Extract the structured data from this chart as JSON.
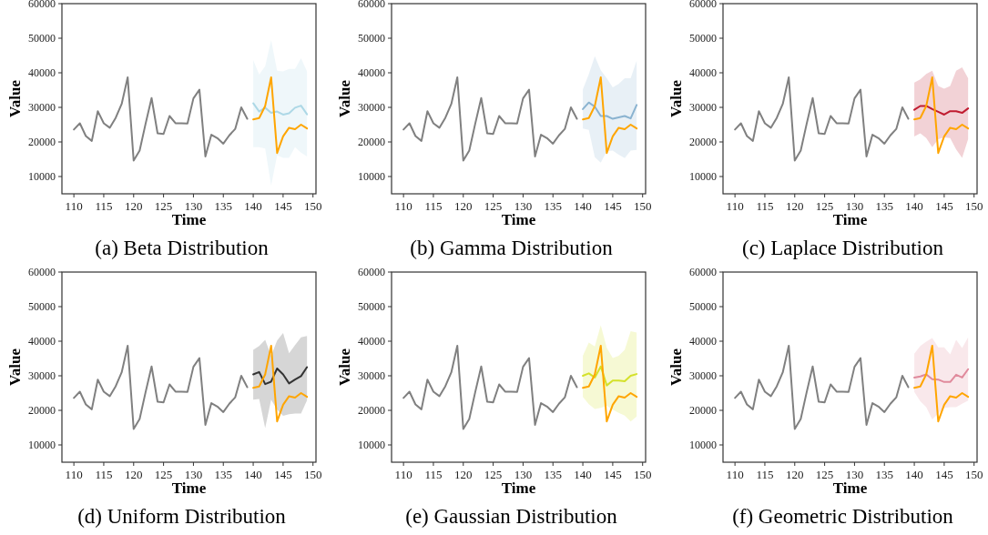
{
  "chart_data": [
    {
      "type": "line",
      "title": "(a) Beta Distribution",
      "xlabel": "Time",
      "ylabel": "Value",
      "xlim": [
        108,
        150.5
      ],
      "ylim": [
        5000,
        60000
      ],
      "xticks": [
        110,
        115,
        120,
        125,
        130,
        135,
        140,
        145,
        150
      ],
      "yticks": [
        10000,
        20000,
        30000,
        40000,
        50000,
        60000
      ],
      "grid": false,
      "line_style": "solid",
      "marker": "none",
      "series": [
        {
          "color": "#808080",
          "x": [
            110,
            111,
            112,
            113,
            114,
            115,
            116,
            117,
            118,
            119,
            120,
            121,
            122,
            123,
            124,
            125,
            126,
            127,
            128,
            129,
            130,
            131,
            132,
            133,
            134,
            135,
            136,
            137,
            138,
            139
          ],
          "values": [
            23600,
            25400,
            21700,
            20300,
            28900,
            25400,
            24100,
            27000,
            31000,
            38700,
            14600,
            17500,
            25300,
            32700,
            22500,
            22300,
            27500,
            25400,
            25400,
            25300,
            32600,
            35100,
            15800,
            22100,
            21100,
            19500,
            21900,
            23800,
            30000,
            26700
          ]
        },
        {
          "color": "#ffa500",
          "x": [
            140,
            141,
            142,
            143,
            144,
            145,
            146,
            147,
            148,
            149
          ],
          "values": [
            26500,
            26900,
            30400,
            38700,
            16800,
            21600,
            24100,
            23700,
            25000,
            23900
          ]
        },
        {
          "color": "#add8e6",
          "x": [
            140,
            141,
            142,
            143,
            144,
            145,
            146,
            147,
            148,
            149
          ],
          "values": [
            31200,
            28800,
            29900,
            28400,
            28800,
            27900,
            28300,
            29900,
            30500,
            28000
          ],
          "lower": [
            18500,
            18500,
            18100,
            7400,
            16100,
            15400,
            15400,
            18500,
            16900,
            15800
          ],
          "upper": [
            43700,
            39500,
            41900,
            49500,
            40600,
            40400,
            41100,
            41100,
            44200,
            40400
          ]
        }
      ]
    },
    {
      "type": "line",
      "title": "(b) Gamma Distribution",
      "xlabel": "Time",
      "ylabel": "Value",
      "xlim": [
        108,
        150.5
      ],
      "ylim": [
        5000,
        60000
      ],
      "xticks": [
        110,
        115,
        120,
        125,
        130,
        135,
        140,
        145,
        150
      ],
      "yticks": [
        10000,
        20000,
        30000,
        40000,
        50000,
        60000
      ],
      "grid": false,
      "line_style": "solid",
      "marker": "none",
      "series": [
        {
          "color": "#808080",
          "x": [
            110,
            111,
            112,
            113,
            114,
            115,
            116,
            117,
            118,
            119,
            120,
            121,
            122,
            123,
            124,
            125,
            126,
            127,
            128,
            129,
            130,
            131,
            132,
            133,
            134,
            135,
            136,
            137,
            138,
            139
          ],
          "values": [
            23600,
            25400,
            21700,
            20300,
            28900,
            25400,
            24100,
            27000,
            31000,
            38700,
            14600,
            17500,
            25300,
            32700,
            22500,
            22300,
            27500,
            25400,
            25400,
            25300,
            32600,
            35100,
            15800,
            22100,
            21100,
            19500,
            21900,
            23800,
            30000,
            26700
          ]
        },
        {
          "color": "#ffa500",
          "x": [
            140,
            141,
            142,
            143,
            144,
            145,
            146,
            147,
            148,
            149
          ],
          "values": [
            26500,
            26900,
            30400,
            38700,
            16800,
            21600,
            24100,
            23700,
            25000,
            23900
          ]
        },
        {
          "color": "#8ab3d0",
          "x": [
            140,
            141,
            142,
            143,
            144,
            145,
            146,
            147,
            148,
            149
          ],
          "values": [
            29500,
            31400,
            30200,
            27500,
            27500,
            26700,
            27100,
            27500,
            26800,
            30700
          ],
          "lower": [
            23900,
            23500,
            15600,
            14000,
            17400,
            17500,
            16300,
            15300,
            17500,
            17700
          ],
          "upper": [
            35200,
            39600,
            44800,
            40700,
            38400,
            35800,
            36800,
            38400,
            38400,
            43500
          ]
        }
      ]
    },
    {
      "type": "line",
      "title": "(c) Laplace Distribution",
      "xlabel": "Time",
      "ylabel": "Value",
      "xlim": [
        108,
        150.5
      ],
      "ylim": [
        5000,
        60000
      ],
      "xticks": [
        110,
        115,
        120,
        125,
        130,
        135,
        140,
        145,
        150
      ],
      "yticks": [
        10000,
        20000,
        30000,
        40000,
        50000,
        60000
      ],
      "grid": false,
      "line_style": "solid",
      "marker": "none",
      "series": [
        {
          "color": "#808080",
          "x": [
            110,
            111,
            112,
            113,
            114,
            115,
            116,
            117,
            118,
            119,
            120,
            121,
            122,
            123,
            124,
            125,
            126,
            127,
            128,
            129,
            130,
            131,
            132,
            133,
            134,
            135,
            136,
            137,
            138,
            139
          ],
          "values": [
            23600,
            25400,
            21700,
            20300,
            28900,
            25400,
            24100,
            27000,
            31000,
            38700,
            14600,
            17500,
            25300,
            32700,
            22500,
            22300,
            27500,
            25400,
            25400,
            25300,
            32600,
            35100,
            15800,
            22100,
            21100,
            19500,
            21900,
            23800,
            30000,
            26700
          ]
        },
        {
          "color": "#ffa500",
          "x": [
            140,
            141,
            142,
            143,
            144,
            145,
            146,
            147,
            148,
            149
          ],
          "values": [
            26500,
            26900,
            30400,
            38700,
            16800,
            21600,
            24100,
            23700,
            25000,
            23900
          ]
        },
        {
          "color": "#c01c30",
          "x": [
            140,
            141,
            142,
            143,
            144,
            145,
            146,
            147,
            148,
            149
          ],
          "values": [
            29300,
            30400,
            30400,
            29500,
            28700,
            27900,
            28900,
            28900,
            28400,
            29700
          ],
          "lower": [
            21600,
            22500,
            21100,
            18500,
            20800,
            21300,
            21100,
            17800,
            15400,
            20800
          ],
          "upper": [
            37200,
            38100,
            39700,
            40600,
            36200,
            35400,
            36200,
            40600,
            41600,
            38400
          ]
        }
      ]
    },
    {
      "type": "line",
      "title": "(d) Uniform Distribution",
      "xlabel": "Time",
      "ylabel": "Value",
      "xlim": [
        108,
        150.5
      ],
      "ylim": [
        5000,
        60000
      ],
      "xticks": [
        110,
        115,
        120,
        125,
        130,
        135,
        140,
        145,
        150
      ],
      "yticks": [
        10000,
        20000,
        30000,
        40000,
        50000,
        60000
      ],
      "grid": false,
      "line_style": "solid",
      "marker": "none",
      "series": [
        {
          "color": "#808080",
          "x": [
            110,
            111,
            112,
            113,
            114,
            115,
            116,
            117,
            118,
            119,
            120,
            121,
            122,
            123,
            124,
            125,
            126,
            127,
            128,
            129,
            130,
            131,
            132,
            133,
            134,
            135,
            136,
            137,
            138,
            139
          ],
          "values": [
            23600,
            25400,
            21700,
            20300,
            28900,
            25400,
            24100,
            27000,
            31000,
            38700,
            14600,
            17500,
            25300,
            32700,
            22500,
            22300,
            27500,
            25400,
            25400,
            25300,
            32600,
            35100,
            15800,
            22100,
            21100,
            19500,
            21900,
            23800,
            30000,
            26700
          ]
        },
        {
          "color": "#ffa500",
          "x": [
            140,
            141,
            142,
            143,
            144,
            145,
            146,
            147,
            148,
            149
          ],
          "values": [
            26500,
            26900,
            30400,
            38700,
            16800,
            21600,
            24100,
            23700,
            25000,
            23900
          ]
        },
        {
          "color": "#333333",
          "x": [
            140,
            141,
            142,
            143,
            144,
            145,
            146,
            147,
            148,
            149
          ],
          "values": [
            30400,
            31100,
            27600,
            28300,
            32100,
            30400,
            27800,
            28900,
            29900,
            32500
          ],
          "lower": [
            23100,
            23300,
            14900,
            23100,
            20200,
            18400,
            18900,
            19100,
            19100,
            22900
          ],
          "upper": [
            37500,
            38600,
            40400,
            35800,
            40200,
            42400,
            36500,
            38900,
            41100,
            41500
          ]
        }
      ]
    },
    {
      "type": "line",
      "title": "(e) Gaussian Distribution",
      "xlabel": "Time",
      "ylabel": "Value",
      "xlim": [
        108,
        150.5
      ],
      "ylim": [
        5000,
        60000
      ],
      "xticks": [
        110,
        115,
        120,
        125,
        130,
        135,
        140,
        145,
        150
      ],
      "yticks": [
        10000,
        20000,
        30000,
        40000,
        50000,
        60000
      ],
      "grid": false,
      "line_style": "solid",
      "marker": "none",
      "series": [
        {
          "color": "#808080",
          "x": [
            110,
            111,
            112,
            113,
            114,
            115,
            116,
            117,
            118,
            119,
            120,
            121,
            122,
            123,
            124,
            125,
            126,
            127,
            128,
            129,
            130,
            131,
            132,
            133,
            134,
            135,
            136,
            137,
            138,
            139
          ],
          "values": [
            23600,
            25400,
            21700,
            20300,
            28900,
            25400,
            24100,
            27000,
            31000,
            38700,
            14600,
            17500,
            25300,
            32700,
            22500,
            22300,
            27500,
            25400,
            25400,
            25300,
            32600,
            35100,
            15800,
            22100,
            21100,
            19500,
            21900,
            23800,
            30000,
            26700
          ]
        },
        {
          "color": "#ffa500",
          "x": [
            140,
            141,
            142,
            143,
            144,
            145,
            146,
            147,
            148,
            149
          ],
          "values": [
            26500,
            26900,
            30400,
            38700,
            16800,
            21600,
            24100,
            23700,
            25000,
            23900
          ]
        },
        {
          "color": "#d4e12a",
          "x": [
            140,
            141,
            142,
            143,
            144,
            145,
            146,
            147,
            148,
            149
          ],
          "values": [
            30000,
            30700,
            29500,
            32700,
            27200,
            28600,
            28600,
            28400,
            30000,
            30500
          ],
          "lower": [
            23900,
            21800,
            20400,
            20700,
            21300,
            20200,
            19300,
            18500,
            16800,
            18200
          ],
          "upper": [
            35800,
            39600,
            38500,
            44600,
            38100,
            35100,
            35800,
            37500,
            42900,
            42500
          ]
        }
      ]
    },
    {
      "type": "line",
      "title": "(f) Geometric Distribution",
      "xlabel": "Time",
      "ylabel": "Value",
      "xlim": [
        108,
        150.5
      ],
      "ylim": [
        5000,
        60000
      ],
      "xticks": [
        110,
        115,
        120,
        125,
        130,
        135,
        140,
        145,
        150
      ],
      "yticks": [
        10000,
        20000,
        30000,
        40000,
        50000,
        60000
      ],
      "grid": false,
      "line_style": "solid",
      "marker": "none",
      "series": [
        {
          "color": "#808080",
          "x": [
            110,
            111,
            112,
            113,
            114,
            115,
            116,
            117,
            118,
            119,
            120,
            121,
            122,
            123,
            124,
            125,
            126,
            127,
            128,
            129,
            130,
            131,
            132,
            133,
            134,
            135,
            136,
            137,
            138,
            139
          ],
          "values": [
            23600,
            25400,
            21700,
            20300,
            28900,
            25400,
            24100,
            27000,
            31000,
            38700,
            14600,
            17500,
            25300,
            32700,
            22500,
            22300,
            27500,
            25400,
            25400,
            25300,
            32600,
            35100,
            15800,
            22100,
            21100,
            19500,
            21900,
            23800,
            30000,
            26700
          ]
        },
        {
          "color": "#ffa500",
          "x": [
            140,
            141,
            142,
            143,
            144,
            145,
            146,
            147,
            148,
            149
          ],
          "values": [
            26500,
            26900,
            30400,
            38700,
            16800,
            21600,
            24100,
            23700,
            25000,
            23900
          ]
        },
        {
          "color": "#e08a9c",
          "x": [
            140,
            141,
            142,
            143,
            144,
            145,
            146,
            147,
            148,
            149
          ],
          "values": [
            29500,
            29800,
            30400,
            29000,
            28900,
            28200,
            28200,
            30300,
            29500,
            31900
          ],
          "lower": [
            25300,
            22600,
            20900,
            17400,
            19100,
            20700,
            20900,
            20900,
            21900,
            22800
          ],
          "upper": [
            36400,
            38600,
            39900,
            40900,
            38200,
            38200,
            36200,
            40400,
            38000,
            41100
          ]
        }
      ]
    }
  ]
}
